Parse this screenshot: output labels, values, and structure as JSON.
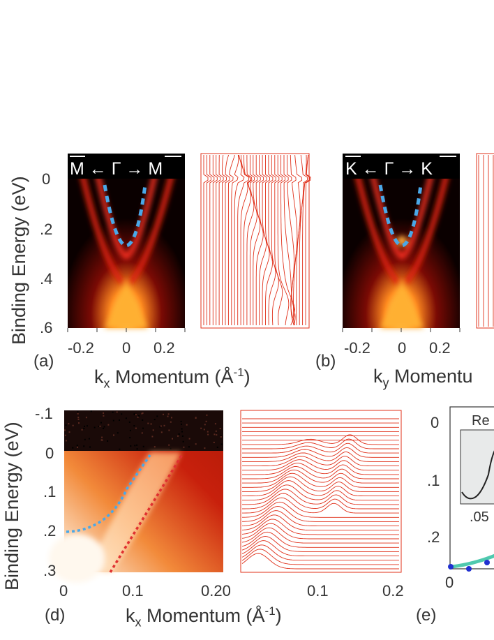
{
  "panels": {
    "a": {
      "letter": "(a)",
      "ylabel": "Binding Energy (eV)",
      "xlabel_main": "k",
      "xlabel_sub": "x",
      "xlabel_rest": " Momentum (Å",
      "xlabel_sup": "-1",
      "xlabel_close": ")",
      "direction": "M ← Γ → M",
      "yticks": [
        "0",
        ".2",
        ".4",
        ".6"
      ],
      "xticks": [
        "-0.2",
        "0",
        "0.2"
      ]
    },
    "b": {
      "letter": "(b)",
      "xlabel_main": "k",
      "xlabel_sub": "y",
      "xlabel_rest": " Momentu",
      "direction": "K ← Γ → K",
      "xticks": [
        "-0.2",
        "0",
        "0.2"
      ]
    },
    "d": {
      "letter": "(d)",
      "ylabel": "Binding Energy (eV)",
      "yticks": [
        "-.1",
        "0",
        ".1",
        ".2",
        ".3"
      ],
      "xticks": [
        "0",
        "0.1",
        "0.20"
      ],
      "edc_xticks": [
        "0.1",
        "0.2"
      ],
      "xlabel_main": "k",
      "xlabel_sub": "x",
      "xlabel_rest": " Momentum (Å",
      "xlabel_sup": "-1",
      "xlabel_close": ")"
    },
    "e": {
      "letter": "(e)",
      "yticks": [
        "0",
        ".1",
        ".2"
      ],
      "xtick": "0",
      "inset_label": "Re",
      "inset_xtick": ".05"
    }
  },
  "colors": {
    "map_dark": "#0a0000",
    "map_red": "#e02010",
    "map_yellow": "#ffd040",
    "trace_red": "#e0301a",
    "guide_blue": "#4aa8e8",
    "guide_red": "#e03030"
  }
}
